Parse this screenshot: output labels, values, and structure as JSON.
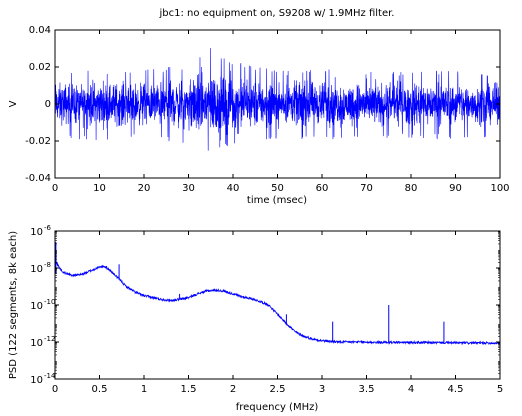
{
  "chart_data": [
    {
      "type": "line",
      "title": "jbc1: no equipment on, S9208 w/ 1.9MHz filter.",
      "xlabel": "time (msec)",
      "ylabel": "V",
      "xlim": [
        0,
        100
      ],
      "ylim": [
        -0.04,
        0.04
      ],
      "x_ticks": [
        0,
        10,
        20,
        30,
        40,
        50,
        60,
        70,
        80,
        90,
        100
      ],
      "y_ticks": [
        -0.04,
        -0.02,
        0,
        0.02,
        0.04
      ],
      "grid": false,
      "series": [
        {
          "color": "#0000ff",
          "description_envelope": {
            "x": [
              0,
              10,
              20,
              25,
              30,
              35,
              40,
              50,
              60,
              70,
              80,
              90,
              100
            ],
            "upper": [
              0.018,
              0.019,
              0.019,
              0.02,
              0.022,
              0.033,
              0.023,
              0.018,
              0.019,
              0.018,
              0.018,
              0.018,
              0.017
            ],
            "lower": [
              -0.019,
              -0.02,
              -0.019,
              -0.02,
              -0.024,
              -0.028,
              -0.024,
              -0.019,
              -0.02,
              -0.019,
              -0.019,
              -0.019,
              -0.018
            ]
          }
        }
      ]
    },
    {
      "type": "line",
      "xlabel": "frequency (MHz)",
      "ylabel": "PSD (122 segments, 8k each)",
      "xlim": [
        0,
        5
      ],
      "ylim_log10": [
        -14,
        -6
      ],
      "y_scale": "log",
      "x_ticks": [
        0,
        0.5,
        1,
        1.5,
        2,
        2.5,
        3,
        3.5,
        4,
        4.5,
        5
      ],
      "x_tick_labels": [
        "0",
        "0.5",
        "1",
        "1.5",
        "2",
        "2.5",
        "3",
        "3.5",
        "4",
        "4.5",
        "5"
      ],
      "y_ticks_log10": [
        -14,
        -12,
        -10,
        -8,
        -6
      ],
      "y_tick_labels": [
        {
          "base": "10",
          "exp": "-14"
        },
        {
          "base": "10",
          "exp": "-12"
        },
        {
          "base": "10",
          "exp": "-10"
        },
        {
          "base": "10",
          "exp": "-8"
        },
        {
          "base": "10",
          "exp": "-6"
        }
      ],
      "grid": false,
      "series": [
        {
          "color": "#0000ff",
          "x": [
            0.0,
            0.02,
            0.05,
            0.1,
            0.2,
            0.3,
            0.4,
            0.5,
            0.55,
            0.6,
            0.7,
            0.8,
            0.9,
            1.0,
            1.1,
            1.2,
            1.3,
            1.4,
            1.5,
            1.6,
            1.7,
            1.8,
            1.9,
            2.0,
            2.1,
            2.2,
            2.3,
            2.4,
            2.5,
            2.6,
            2.7,
            2.8,
            2.9,
            3.0,
            3.1,
            3.2,
            3.4,
            3.6,
            3.8,
            4.0,
            4.2,
            4.4,
            4.6,
            4.8,
            5.0
          ],
          "log10_y": [
            -7.2,
            -7.7,
            -8.0,
            -8.25,
            -8.4,
            -8.35,
            -8.15,
            -7.95,
            -7.9,
            -8.05,
            -8.5,
            -9.0,
            -9.3,
            -9.5,
            -9.6,
            -9.7,
            -9.75,
            -9.7,
            -9.6,
            -9.4,
            -9.25,
            -9.2,
            -9.25,
            -9.4,
            -9.55,
            -9.65,
            -9.8,
            -10.0,
            -10.5,
            -11.0,
            -11.45,
            -11.7,
            -11.85,
            -11.93,
            -11.97,
            -12.0,
            -12.0,
            -12.02,
            -12.02,
            -12.03,
            -12.03,
            -12.04,
            -12.05,
            -12.05,
            -12.06
          ],
          "spikes": [
            {
              "x": 0.72,
              "log10_y": -7.8
            },
            {
              "x": 1.4,
              "log10_y": -9.4
            },
            {
              "x": 2.6,
              "log10_y": -10.5
            },
            {
              "x": 3.12,
              "log10_y": -10.9
            },
            {
              "x": 3.75,
              "log10_y": -10.0
            },
            {
              "x": 4.37,
              "log10_y": -10.9
            }
          ]
        }
      ]
    }
  ]
}
